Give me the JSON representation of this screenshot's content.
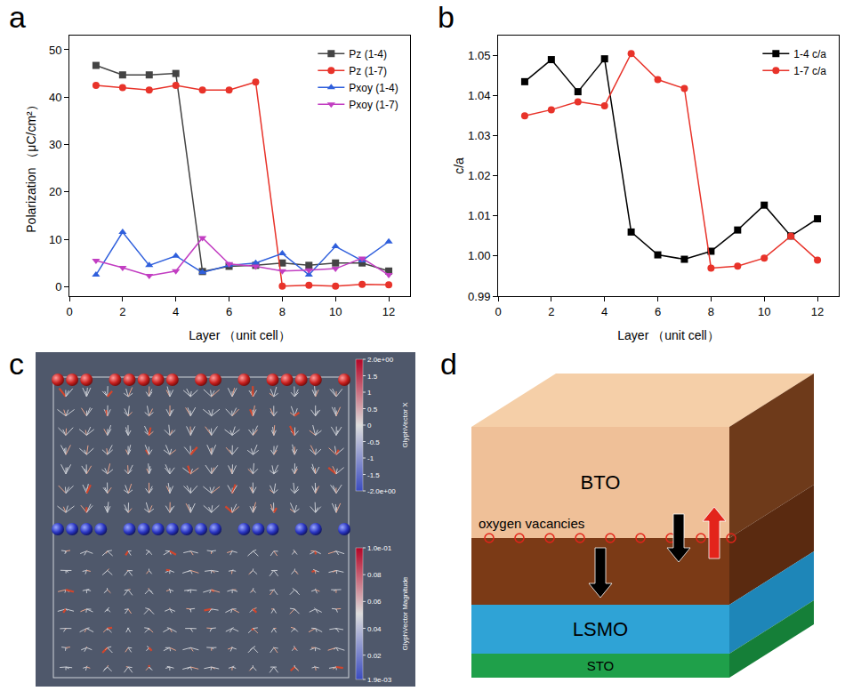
{
  "chart_data": [
    {
      "panel_label": "a",
      "type": "line",
      "x_label": "Layer （unit cell）",
      "y_label": "Polarization （μC/cm²）",
      "x": [
        1,
        2,
        3,
        4,
        5,
        6,
        7,
        8,
        9,
        10,
        11,
        12
      ],
      "series": [
        {
          "name": "Pz (1-4)",
          "color": "#444444",
          "marker": "square",
          "line_style": "solid",
          "values": [
            46.7,
            44.7,
            44.7,
            45.0,
            3.2,
            4.3,
            4.5,
            5.0,
            4.5,
            5.0,
            5.0,
            3.3
          ]
        },
        {
          "name": "Pz (1-7)",
          "color": "#e8332a",
          "marker": "circle",
          "line_style": "solid",
          "values": [
            42.5,
            42.0,
            41.5,
            42.5,
            41.5,
            41.5,
            43.2,
            0.1,
            0.3,
            0.1,
            0.5,
            0.4
          ]
        },
        {
          "name": "Pxoy (1-4)",
          "color": "#2f5fdc",
          "marker": "triangle-up",
          "line_style": "solid",
          "values": [
            2.5,
            11.5,
            4.5,
            6.5,
            3.0,
            4.5,
            5.0,
            7.0,
            2.5,
            8.5,
            5.5,
            9.5
          ]
        },
        {
          "name": "Pxoy (1-7)",
          "color": "#c23ec2",
          "marker": "triangle-down",
          "line_style": "solid",
          "values": [
            5.5,
            4.0,
            2.3,
            3.3,
            10.3,
            4.8,
            4.3,
            3.3,
            3.5,
            3.8,
            6.0,
            2.5
          ]
        }
      ],
      "xlim": [
        0,
        12.8
      ],
      "xticks": [
        0,
        2,
        4,
        6,
        8,
        10,
        12
      ],
      "ylim": [
        -2,
        53
      ],
      "yticks": [
        0,
        10,
        20,
        30,
        40,
        50
      ],
      "grid": false,
      "legend": "upper right"
    },
    {
      "panel_label": "b",
      "type": "line",
      "x_label": "Layer （unit cell）",
      "y_label": "c/a",
      "x": [
        1,
        2,
        3,
        4,
        5,
        6,
        7,
        8,
        9,
        10,
        11,
        12
      ],
      "series": [
        {
          "name": "1-4 c/a",
          "color": "#000000",
          "marker": "square",
          "line_style": "solid",
          "values": [
            1.0435,
            1.049,
            1.041,
            1.0492,
            1.006,
            1.0003,
            0.9992,
            1.0012,
            1.0065,
            1.0127,
            1.005,
            1.0093
          ]
        },
        {
          "name": "1-7 c/a",
          "color": "#e8332a",
          "marker": "circle",
          "line_style": "solid",
          "values": [
            1.035,
            1.0365,
            1.0385,
            1.0375,
            1.0505,
            1.044,
            1.0418,
            0.997,
            0.9975,
            0.9995,
            1.005,
            0.999
          ]
        }
      ],
      "xlim": [
        0,
        12.8
      ],
      "xticks": [
        0,
        2,
        4,
        6,
        8,
        10,
        12
      ],
      "ylim": [
        0.99,
        1.055
      ],
      "yticks": [
        0.99,
        {
          "value": 1,
          "label": "1.00"
        },
        1.01,
        1.02,
        1.03,
        1.04,
        1.05
      ],
      "grid": false,
      "legend": "upper right"
    }
  ],
  "panel_c": {
    "panel_label": "c",
    "colorbars": [
      {
        "title": "GlyphVector X",
        "range": [
          -2,
          2
        ],
        "ticks": [
          {
            "value": 2,
            "label": "2.0e+00"
          },
          1.5,
          1,
          0.5,
          0,
          -0.5,
          -1,
          -1.5,
          {
            "value": -2,
            "label": "-2.0e+00"
          }
        ]
      },
      {
        "title": "GlyphVector Magnitude",
        "range": [
          0.0019,
          0.1
        ],
        "ticks": [
          {
            "value": 0.1,
            "label": "1.0e-01"
          },
          0.08,
          0.06,
          0.04,
          0.02,
          {
            "value": 0.0019,
            "label": "1.9e-03"
          }
        ]
      }
    ]
  },
  "panel_d": {
    "panel_label": "d",
    "layer_labels": [
      "BTO",
      null,
      "LSMO",
      "STO"
    ],
    "interface_label": "oxygen vacancies"
  }
}
